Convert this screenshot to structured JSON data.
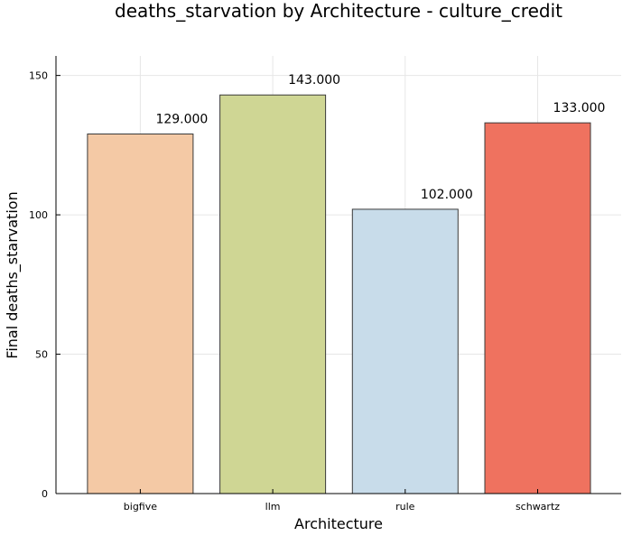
{
  "chart_data": {
    "type": "bar",
    "title": "deaths_starvation by Architecture - culture_credit",
    "xlabel": "Architecture",
    "ylabel": "Final deaths_starvation",
    "categories": [
      "bigfive",
      "llm",
      "rule",
      "schwartz"
    ],
    "values": [
      129,
      143,
      102,
      133
    ],
    "value_labels": [
      "129.000",
      "143.000",
      "102.000",
      "133.000"
    ],
    "colors": [
      "#f4c9a5",
      "#cfd694",
      "#c8dcea",
      "#ef725f"
    ],
    "ylim": [
      0,
      157
    ],
    "yticks": [
      0,
      50,
      100,
      150
    ],
    "ytick_labels": [
      "0",
      "50",
      "100",
      "150"
    ],
    "grid": true,
    "legend": false
  }
}
